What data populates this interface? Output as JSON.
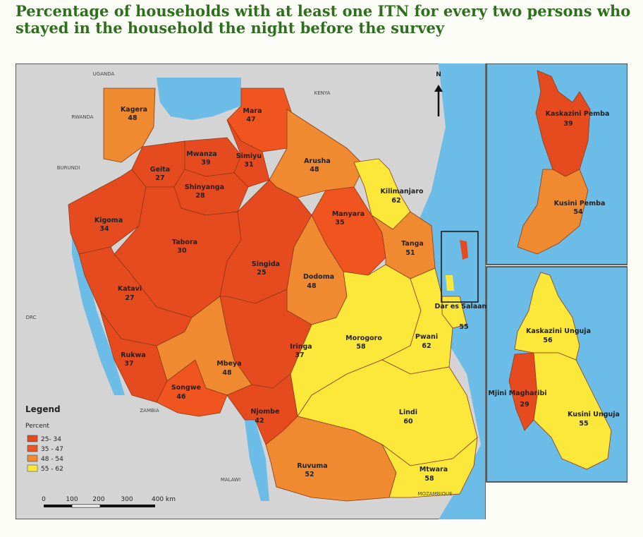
{
  "title": "Percentage of households with at least one ITN for every two persons who stayed in the household the night before the survey",
  "north": "N",
  "legend": {
    "title": "Legend",
    "subtitle": "Percent",
    "classes": [
      {
        "label": "25- 34",
        "color": "#e64b1f"
      },
      {
        "label": "35 - 47",
        "color": "#f0541f"
      },
      {
        "label": "48 - 54",
        "color": "#f08a30"
      },
      {
        "label": "55 - 62",
        "color": "#fbe83a"
      }
    ]
  },
  "scale": [
    "0",
    "100",
    "200",
    "300",
    "400 km"
  ],
  "countries": {
    "uganda": "UGANDA",
    "kenya": "KENYA",
    "rwanda": "RWANDA",
    "burundi": "BURUNDI",
    "drc": "DRC",
    "zambia": "ZAMBIA",
    "malawi": "MALAWI",
    "mozambique": "MOZAMBIQUE"
  },
  "regions": {
    "kagera": {
      "name": "Kagera",
      "value": "48"
    },
    "mara": {
      "name": "Mara",
      "value": "47"
    },
    "mwanza": {
      "name": "Mwanza",
      "value": "39"
    },
    "simiyu": {
      "name": "Simiyu",
      "value": "31"
    },
    "geita": {
      "name": "Geita",
      "value": "27"
    },
    "shinyanga": {
      "name": "Shinyanga",
      "value": "28"
    },
    "arusha": {
      "name": "Arusha",
      "value": "48"
    },
    "kilimanjaro": {
      "name": "Kilimanjaro",
      "value": "62"
    },
    "kigoma": {
      "name": "Kigoma",
      "value": "34"
    },
    "manyara": {
      "name": "Manyara",
      "value": "35"
    },
    "tabora": {
      "name": "Tabora",
      "value": "30"
    },
    "tanga": {
      "name": "Tanga",
      "value": "51"
    },
    "singida": {
      "name": "Singida",
      "value": "25"
    },
    "dodoma": {
      "name": "Dodoma",
      "value": "48"
    },
    "katavi": {
      "name": "Katavi",
      "value": "27"
    },
    "dar": {
      "name": "Dar es Salaam",
      "value": "55"
    },
    "morogoro": {
      "name": "Morogoro",
      "value": "58"
    },
    "pwani": {
      "name": "Pwani",
      "value": "62"
    },
    "iringa": {
      "name": "Iringa",
      "value": "37"
    },
    "rukwa": {
      "name": "Rukwa",
      "value": "37"
    },
    "mbeya": {
      "name": "Mbeya",
      "value": "48"
    },
    "songwe": {
      "name": "Songwe",
      "value": "46"
    },
    "njombe": {
      "name": "Njombe",
      "value": "42"
    },
    "lindi": {
      "name": "Lindi",
      "value": "60"
    },
    "ruvuma": {
      "name": "Ruvuma",
      "value": "52"
    },
    "mtwara": {
      "name": "Mtwara",
      "value": "58"
    },
    "kaskazini_pemba": {
      "name": "Kaskazini Pemba",
      "value": "39"
    },
    "kusini_pemba": {
      "name": "Kusini Pemba",
      "value": "54"
    },
    "kaskazini_unguja": {
      "name": "Kaskazini Unguja",
      "value": "56"
    },
    "mjini_magharibi": {
      "name": "Mjini Magharibi",
      "value": "29"
    },
    "kusini_unguja": {
      "name": "Kusini Unguja",
      "value": "55"
    }
  }
}
